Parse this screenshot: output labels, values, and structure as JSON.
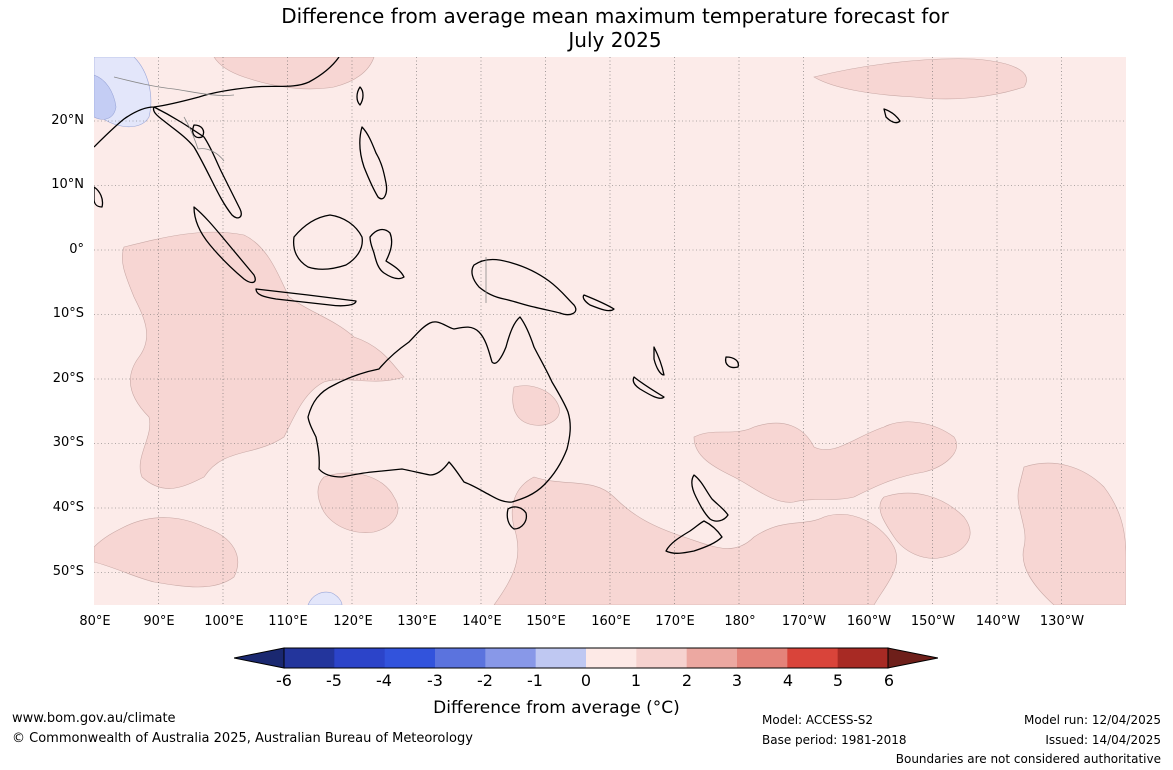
{
  "title": {
    "line1": "Difference from average mean maximum temperature forecast for",
    "line2": "July 2025"
  },
  "lat_labels": [
    "20°N",
    "10°N",
    "0°",
    "10°S",
    "20°S",
    "30°S",
    "40°S",
    "50°S"
  ],
  "lon_labels": [
    "80°E",
    "90°E",
    "100°E",
    "110°E",
    "120°E",
    "130°E",
    "140°E",
    "150°E",
    "160°E",
    "170°E",
    "180°",
    "170°W",
    "160°W",
    "150°W",
    "140°W",
    "130°W"
  ],
  "colorbar": {
    "ticks": [
      "-6",
      "-5",
      "-4",
      "-3",
      "-2",
      "-1",
      "0",
      "1",
      "2",
      "3",
      "4",
      "5",
      "6"
    ],
    "colors": [
      "#23359c",
      "#2c44c9",
      "#3253dc",
      "#5b73de",
      "#8898e8",
      "#bfc8f2",
      "#ecedfb",
      "#fde9e6",
      "#f6d2cf",
      "#eca8a1",
      "#e4837a",
      "#d9443a",
      "#a82a24"
    ],
    "under_color": "#1a2870",
    "over_color": "#6e1f1a",
    "label": "Difference from average ($^\\circ$C)",
    "label_display": "Difference from average (°C)"
  },
  "colors": {
    "ocean_base": "#fcebe9",
    "warm_patch": "#f7d6d3",
    "cool_patch": "#e3e6fa",
    "cool_patch_strong": "#c4cdf4",
    "coastline": "#000000",
    "gridline": "#666666"
  },
  "footer": {
    "website": "www.bom.gov.au/climate",
    "copyright": "© Commonwealth of Australia 2025, Australian Bureau of Meteorology",
    "model": "Model: ACCESS-S2",
    "base_period": "Base period: 1981-2018",
    "model_run": "Model run: 12/04/2025",
    "issued": "Issued: 14/04/2025",
    "disclaimer": "Boundaries are not considered authoritative"
  }
}
